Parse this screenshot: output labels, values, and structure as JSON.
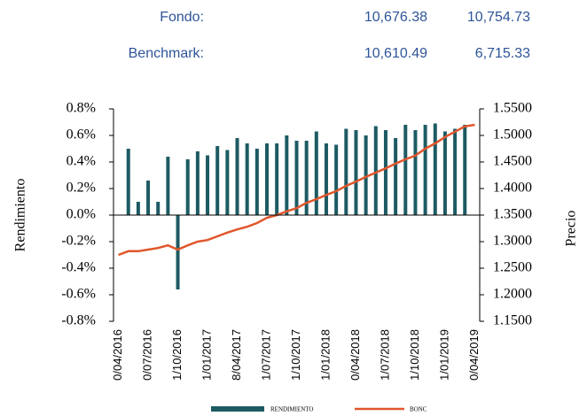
{
  "header": {
    "rows": [
      {
        "label": "Fondo:",
        "values": [
          "10,676.38",
          "10,754.73"
        ]
      },
      {
        "label": "Benchmark:",
        "values": [
          "10,610.49",
          "6,715.33"
        ]
      }
    ]
  },
  "chart_data": {
    "type": "bar-line",
    "categories": [
      "0/04/2016",
      null,
      null,
      "0/07/2016",
      null,
      null,
      "1/10/2016",
      null,
      null,
      "1/01/2017",
      null,
      null,
      "8/04/2017",
      null,
      null,
      "1/07/2017",
      null,
      null,
      "1/10/2017",
      null,
      null,
      "1/01/2018",
      null,
      null,
      "0/04/2018",
      null,
      null,
      "1/07/2018",
      null,
      null,
      "1/10/2018",
      null,
      null,
      "1/01/2019",
      null,
      null,
      "0/04/2019"
    ],
    "series": [
      {
        "name": "RENDIMIENTO",
        "color": "#1d5b63",
        "axis": "y",
        "values": [
          null,
          0.5,
          0.1,
          0.26,
          0.1,
          0.44,
          -0.56,
          0.42,
          0.48,
          0.45,
          0.52,
          0.49,
          0.58,
          0.54,
          0.5,
          0.54,
          0.54,
          0.6,
          0.56,
          0.56,
          0.63,
          0.54,
          0.53,
          0.65,
          0.64,
          0.6,
          0.67,
          0.64,
          0.58,
          0.68,
          0.64,
          0.68,
          0.69,
          0.63,
          0.65,
          0.68,
          null
        ]
      },
      {
        "name": "BONC",
        "color": "#e0562b",
        "axis": "y2",
        "values": [
          1.275,
          1.282,
          1.282,
          1.285,
          1.288,
          1.293,
          1.285,
          1.293,
          1.3,
          1.303,
          1.31,
          1.317,
          1.323,
          1.328,
          1.335,
          1.345,
          1.35,
          1.357,
          1.363,
          1.373,
          1.38,
          1.388,
          1.395,
          1.405,
          1.413,
          1.422,
          1.43,
          1.438,
          1.447,
          1.455,
          1.462,
          1.475,
          1.485,
          1.497,
          1.507,
          1.517,
          1.52
        ]
      }
    ],
    "y_label": "Rendimiento",
    "y2_label": "Precio",
    "ylim": [
      -0.8,
      0.8
    ],
    "yticks": [
      {
        "value": -0.8,
        "label": "-0.8%"
      },
      {
        "value": -0.6,
        "label": "-0.6%"
      },
      {
        "value": -0.4,
        "label": "-0.4%"
      },
      {
        "value": -0.2,
        "label": "-0.2%"
      },
      {
        "value": 0,
        "label": "0.0%"
      },
      {
        "value": 0.2,
        "label": "0.2%"
      },
      {
        "value": 0.4,
        "label": "0.4%"
      },
      {
        "value": 0.6,
        "label": "0.6%"
      },
      {
        "value": 0.8,
        "label": "0.8%"
      }
    ],
    "y2lim": [
      1.15,
      1.55
    ],
    "y2ticks": [
      {
        "value": 1.15,
        "label": "1.1500"
      },
      {
        "value": 1.2,
        "label": "1.2000"
      },
      {
        "value": 1.25,
        "label": "1.2500"
      },
      {
        "value": 1.3,
        "label": "1.3000"
      },
      {
        "value": 1.35,
        "label": "1.3500"
      },
      {
        "value": 1.4,
        "label": "1.4000"
      },
      {
        "value": 1.45,
        "label": "1.4500"
      },
      {
        "value": 1.5,
        "label": "1.5000"
      },
      {
        "value": 1.55,
        "label": "1.5500"
      }
    ]
  }
}
